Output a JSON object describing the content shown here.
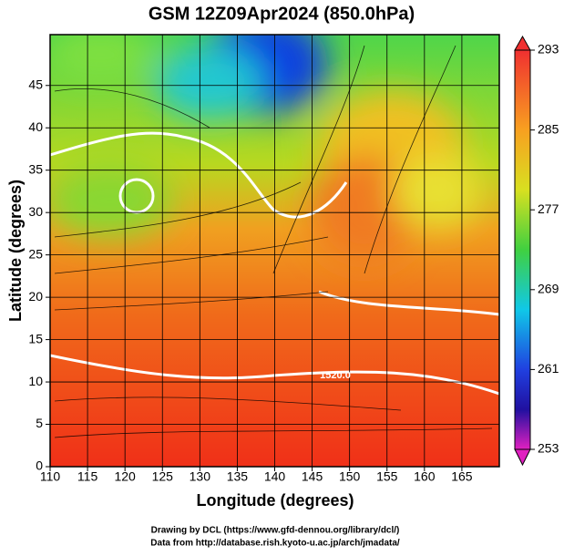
{
  "chart_data": {
    "type": "heatmap",
    "title": "GSM 12Z09Apr2024 (850.0hPa)",
    "xlabel": "Longitude (degrees)",
    "ylabel": "Latitude  (degrees)",
    "xlim": [
      110,
      170
    ],
    "xticks": [
      110,
      115,
      120,
      125,
      130,
      135,
      140,
      145,
      150,
      155,
      160,
      165
    ],
    "ylim": [
      0,
      51
    ],
    "yticks": [
      0,
      5,
      10,
      15,
      20,
      25,
      30,
      35,
      40,
      45
    ],
    "grid": true,
    "colorbar": {
      "lim": [
        253,
        293
      ],
      "ticks": [
        253,
        261,
        269,
        277,
        285,
        293
      ]
    },
    "contour_label": "1520.0",
    "credits": [
      "Drawing by DCL (https://www.gfd-dennou.org/library/dcl/)",
      "Data from http://database.rish.kyoto-u.ac.jp/arch/jmadata/"
    ]
  }
}
